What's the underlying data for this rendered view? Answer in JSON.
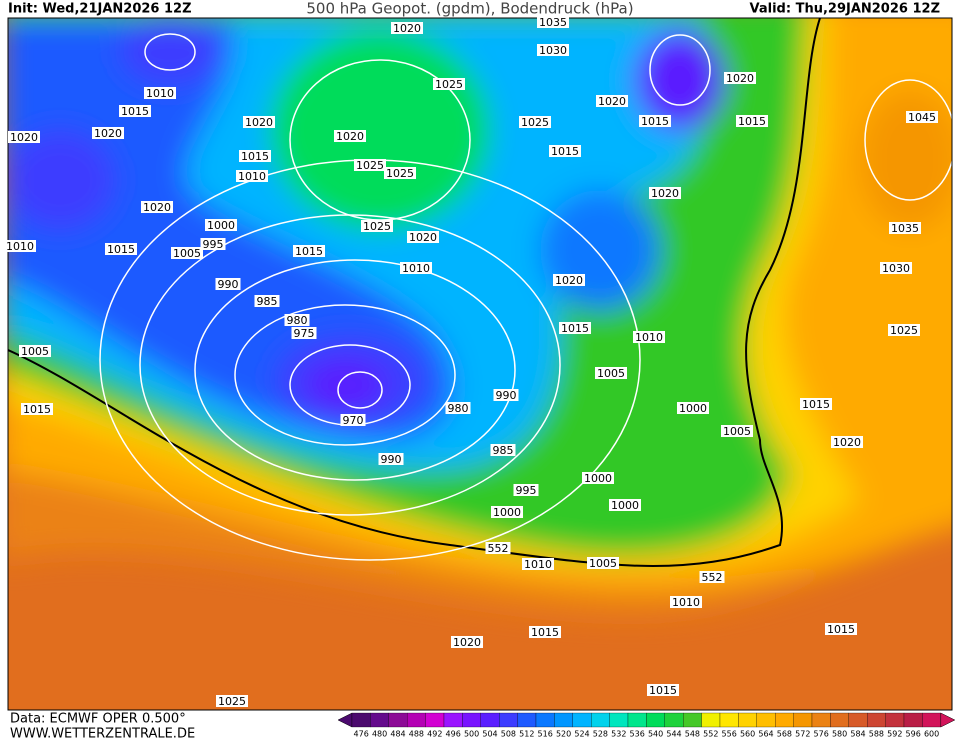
{
  "header": {
    "init": "Init: Wed,21JAN2026 12Z",
    "title": "500 hPa Geopot. (gpdm), Bodendruck (hPa)",
    "valid": "Valid: Thu,29JAN2026 12Z"
  },
  "footer": {
    "data_source": "Data: ECMWF OPER 0.500°",
    "website": "WWW.WETTERZENTRALE.DE"
  },
  "isobar_labels": [
    1020,
    1035,
    1030,
    1010,
    1015,
    1020,
    1020,
    1025,
    1020,
    1020,
    1015,
    1010,
    1025,
    1025,
    1020,
    1020,
    1025,
    1015,
    1015,
    1045,
    1015,
    1020,
    1020,
    1000,
    995,
    1005,
    1015,
    1010,
    1025,
    1020,
    1015,
    1010,
    1035,
    1030,
    990,
    985,
    980,
    975,
    1020,
    1015,
    1010,
    1025,
    1005,
    1005,
    970,
    980,
    990,
    1000,
    1015,
    1015,
    1005,
    1020,
    985,
    990,
    995,
    1000,
    1000,
    1000,
    552,
    1010,
    1005,
    552,
    1010,
    1015,
    1015,
    1020,
    1015,
    1025
  ],
  "colorbar": {
    "values": [
      476,
      480,
      484,
      488,
      492,
      496,
      500,
      504,
      508,
      512,
      516,
      520,
      524,
      528,
      532,
      536,
      540,
      544,
      548,
      552,
      556,
      560,
      564,
      568,
      572,
      576,
      580,
      584,
      588,
      592,
      596,
      600
    ],
    "colors": [
      "#4b0a6e",
      "#640a8c",
      "#8c0a96",
      "#b400b4",
      "#d200d2",
      "#9a14ff",
      "#7814ff",
      "#5a1eff",
      "#3c3cff",
      "#1e5aff",
      "#0a78ff",
      "#0096ff",
      "#00b4ff",
      "#00d2ec",
      "#00e6be",
      "#00e68c",
      "#00dc5a",
      "#1ed23c",
      "#46c828",
      "#f0f000",
      "#ffe600",
      "#ffd200",
      "#ffbe00",
      "#ffaa00",
      "#f59600",
      "#eb8214",
      "#e16e1e",
      "#d75a28",
      "#cd4632",
      "#c3323c",
      "#b91e46",
      "#d2145a"
    ]
  }
}
